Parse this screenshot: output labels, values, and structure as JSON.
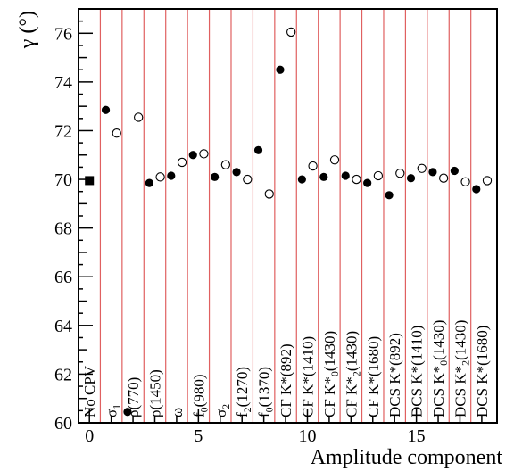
{
  "chart_data": {
    "type": "scatter",
    "xlabel": "Amplitude component",
    "ylabel": "γ (°)",
    "xlim": [
      -0.5,
      18.7
    ],
    "ylim": [
      60,
      77
    ],
    "xticks": [
      0,
      5,
      10,
      15
    ],
    "yticks": [
      60,
      62,
      64,
      66,
      68,
      70,
      72,
      74,
      76
    ],
    "grid": false,
    "separator_color": "#e06060",
    "separators_x": [
      0.5,
      1.5,
      2.5,
      3.5,
      4.5,
      5.5,
      6.5,
      7.5,
      8.5,
      9.5,
      10.5,
      11.5,
      12.5,
      13.5,
      14.5,
      15.5,
      16.5,
      17.5
    ],
    "component_labels": [
      {
        "x": 0,
        "text": "No CPV"
      },
      {
        "x": 1,
        "text": "σ",
        "sub": "1",
        "rest": ""
      },
      {
        "x": 2,
        "text": "ρ(770)"
      },
      {
        "x": 3,
        "text": "ρ(1450)"
      },
      {
        "x": 4,
        "text": "ω"
      },
      {
        "x": 5,
        "text": "f",
        "sub": "0",
        "rest": "(980)"
      },
      {
        "x": 6,
        "text": "σ",
        "sub": "2",
        "rest": ""
      },
      {
        "x": 7,
        "text": "f",
        "sub": "2",
        "rest": "(1270)"
      },
      {
        "x": 8,
        "text": "f",
        "sub": "0",
        "rest": "(1370)"
      },
      {
        "x": 9,
        "text": "CF K*(892)"
      },
      {
        "x": 10,
        "text": "CF K*(1410)"
      },
      {
        "x": 11,
        "text": "CF K*",
        "sub": "0",
        "rest": "(1430)"
      },
      {
        "x": 12,
        "text": "CF K*",
        "sub": "2",
        "rest": "(1430)"
      },
      {
        "x": 13,
        "text": "CF K*(1680)"
      },
      {
        "x": 14,
        "text": "DCS K*(892)"
      },
      {
        "x": 15,
        "text": "DCS K*(1410)"
      },
      {
        "x": 16,
        "text": "DCS K*",
        "sub": "0",
        "rest": "(1430)"
      },
      {
        "x": 17,
        "text": "DCS K*",
        "sub": "2",
        "rest": "(1430)"
      },
      {
        "x": 18,
        "text": "DCS K*(1680)"
      }
    ],
    "series": [
      {
        "marker": "square-filled",
        "points": [
          [
            0,
            69.95
          ]
        ]
      },
      {
        "marker": "circle-filled",
        "points": [
          [
            0.75,
            72.85
          ],
          [
            1.75,
            60.45
          ],
          [
            2.75,
            69.85
          ],
          [
            3.75,
            70.15
          ],
          [
            4.75,
            71.0
          ],
          [
            5.75,
            70.1
          ],
          [
            6.75,
            70.3
          ],
          [
            7.75,
            71.2
          ],
          [
            8.75,
            74.5
          ],
          [
            9.75,
            70.0
          ],
          [
            10.75,
            70.1
          ],
          [
            11.75,
            70.15
          ],
          [
            12.75,
            69.85
          ],
          [
            13.75,
            69.35
          ],
          [
            14.75,
            70.05
          ],
          [
            15.75,
            70.3
          ],
          [
            16.75,
            70.35
          ],
          [
            17.75,
            69.6
          ]
        ]
      },
      {
        "marker": "circle-open",
        "points": [
          [
            1.25,
            71.9
          ],
          [
            2.25,
            72.55
          ],
          [
            3.25,
            70.1
          ],
          [
            4.25,
            70.7
          ],
          [
            5.25,
            71.05
          ],
          [
            6.25,
            70.6
          ],
          [
            7.25,
            70.0
          ],
          [
            8.25,
            69.4
          ],
          [
            9.25,
            76.05
          ],
          [
            10.25,
            70.55
          ],
          [
            11.25,
            70.8
          ],
          [
            12.25,
            70.0
          ],
          [
            13.25,
            70.15
          ],
          [
            14.25,
            70.25
          ],
          [
            15.25,
            70.45
          ],
          [
            16.25,
            70.05
          ],
          [
            17.25,
            69.9
          ],
          [
            18.25,
            69.95
          ]
        ]
      }
    ]
  }
}
